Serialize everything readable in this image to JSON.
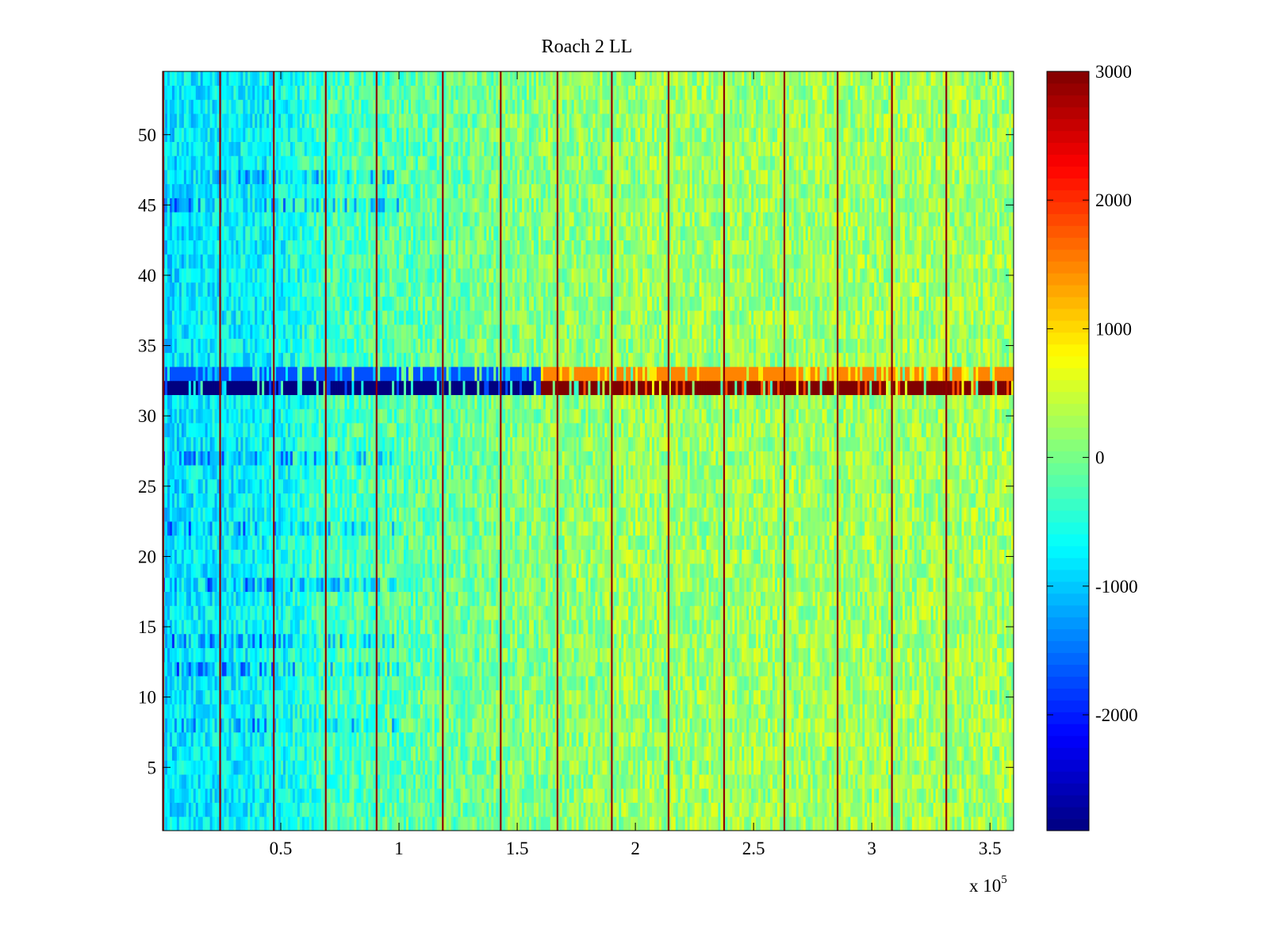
{
  "chart_data": {
    "type": "heatmap",
    "title": "Roach 2 LL",
    "xlabel": "",
    "ylabel": "",
    "x_exponent_label": "x 10",
    "x_exponent_power": "5",
    "xlim": [
      0,
      3.6
    ],
    "ylim": [
      0.5,
      54.5
    ],
    "x_ticks": [
      0.5,
      1,
      1.5,
      2,
      2.5,
      3,
      3.5
    ],
    "x_tick_labels": [
      "0.5",
      "1",
      "1.5",
      "2",
      "2.5",
      "3",
      "3.5"
    ],
    "y_ticks": [
      5,
      10,
      15,
      20,
      25,
      30,
      35,
      40,
      45,
      50
    ],
    "y_tick_labels": [
      "5",
      "10",
      "15",
      "20",
      "25",
      "30",
      "35",
      "40",
      "45",
      "50"
    ],
    "colorbar": {
      "colormap": "jet",
      "range": [
        -2900,
        3000
      ],
      "ticks": [
        -2000,
        -1000,
        0,
        1000,
        2000,
        3000
      ],
      "tick_labels": [
        "-2000",
        "-1000",
        "0",
        "1000",
        "2000",
        "3000"
      ]
    },
    "rows": 54,
    "columns": 360,
    "baseline_trend": {
      "x": [
        0,
        0.5,
        0.7,
        1.2,
        1.5,
        2.0,
        3.6
      ],
      "value": [
        -850,
        -650,
        -300,
        -100,
        50,
        200,
        250
      ]
    },
    "spike_columns_x": [
      0.003,
      0.243,
      0.47,
      0.69,
      0.905,
      1.185,
      1.43,
      1.67,
      1.9,
      2.14,
      2.375,
      2.63,
      2.855,
      3.085,
      3.315
    ],
    "spike_value": 2900,
    "anomalous_rows": [
      {
        "row": 32,
        "value_low": -2900,
        "value_high": 3000,
        "switch_x": 1.6
      },
      {
        "row": 33,
        "value_low": -1700,
        "value_high": 1500,
        "switch_x": 1.6
      }
    ],
    "cold_rows": [
      8,
      12,
      14,
      18,
      22,
      27,
      45,
      47
    ]
  }
}
